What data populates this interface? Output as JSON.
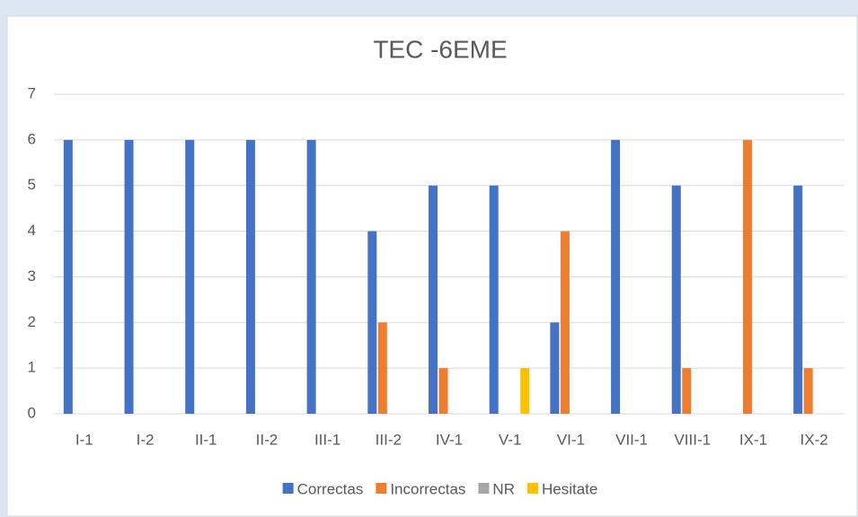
{
  "chart_data": {
    "type": "bar",
    "title": "TEC -6EME",
    "categories": [
      "I-1",
      "I-2",
      "II-1",
      "II-2",
      "III-1",
      "III-2",
      "IV-1",
      "V-1",
      "VI-1",
      "VII-1",
      "VIII-1",
      "IX-1",
      "IX-2"
    ],
    "series": [
      {
        "name": "Correctas",
        "color": "#4472c4",
        "values": [
          6,
          6,
          6,
          6,
          6,
          4,
          5,
          5,
          2,
          6,
          5,
          0,
          5
        ]
      },
      {
        "name": "Incorrectas",
        "color": "#ed7d31",
        "values": [
          0,
          0,
          0,
          0,
          0,
          2,
          1,
          0,
          4,
          0,
          1,
          6,
          1
        ]
      },
      {
        "name": "NR",
        "color": "#a5a5a5",
        "values": [
          0,
          0,
          0,
          0,
          0,
          0,
          0,
          0,
          0,
          0,
          0,
          0,
          0
        ]
      },
      {
        "name": "Hesitate",
        "color": "#ffc000",
        "values": [
          0,
          0,
          0,
          0,
          0,
          0,
          0,
          1,
          0,
          0,
          0,
          0,
          0
        ]
      }
    ],
    "ylim": [
      0,
      7
    ],
    "yticks": [
      0,
      1,
      2,
      3,
      4,
      5,
      6,
      7
    ],
    "grid": true,
    "legend": "bottom"
  }
}
